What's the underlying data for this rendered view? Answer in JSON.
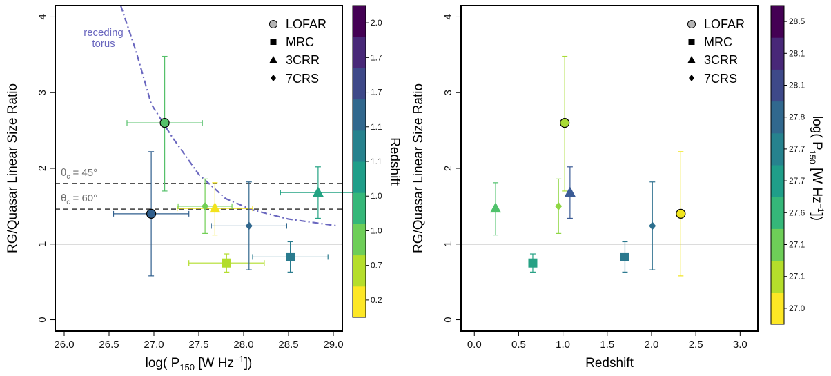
{
  "chart_data": [
    {
      "type": "scatter",
      "xlabel_main": "log( P",
      "xlabel_sub": "150",
      "xlabel_units": " [W Hz",
      "xlabel_sup": "−1",
      "xlabel_end": "])",
      "ylabel": "RG/Quasar Linear Size Ratio",
      "xlim": [
        25.9,
        29.1
      ],
      "ylim": [
        -0.15,
        4.15
      ],
      "xticks": [
        "26.0",
        "26.5",
        "27.0",
        "27.5",
        "28.0",
        "28.5",
        "29.0"
      ],
      "yticks": [
        "0",
        "1",
        "2",
        "3",
        "4"
      ],
      "legend": [
        "LOFAR",
        "MRC",
        "3CRR",
        "7CRS"
      ],
      "colorbar_label": "Redshift",
      "colorbar_ticks": [
        "0.2",
        "0.7",
        "1.0",
        "1.0",
        "1.1",
        "1.1",
        "1.7",
        "1.7",
        "2.0"
      ],
      "hlines": [
        {
          "y": 1.0,
          "style": "solid-gray"
        },
        {
          "y": 1.8,
          "style": "dashed",
          "label_main": "θ",
          "label_sub": "c",
          "label_rest": " = 45°"
        },
        {
          "y": 1.46,
          "style": "dashed",
          "label_main": "θ",
          "label_sub": "c",
          "label_rest": " = 60°"
        }
      ],
      "curve": {
        "label_line1": "receding",
        "label_line2": "torus",
        "color": "#6a67bf",
        "x": [
          26.63,
          26.8,
          26.97,
          27.2,
          27.5,
          27.8,
          28.1,
          28.5,
          29.05
        ],
        "y": [
          4.15,
          3.55,
          2.85,
          2.42,
          1.92,
          1.6,
          1.45,
          1.33,
          1.24
        ]
      },
      "points": [
        {
          "survey": "LOFAR",
          "x": 27.12,
          "y": 2.6,
          "xerr": 0.42,
          "yerr_lo": 0.9,
          "yerr_hi": 0.88,
          "color": "#55c06a"
        },
        {
          "survey": "LOFAR",
          "x": 26.97,
          "y": 1.4,
          "xerr": 0.42,
          "yerr_lo": 0.82,
          "yerr_hi": 0.82,
          "color": "#2f5e8d"
        },
        {
          "survey": "MRC",
          "x": 27.81,
          "y": 0.75,
          "xerr": 0.42,
          "yerr_lo": 0.12,
          "yerr_hi": 0.12,
          "color": "#b2dd2c"
        },
        {
          "survey": "MRC",
          "x": 28.52,
          "y": 0.83,
          "xerr": 0.42,
          "yerr_lo": 0.2,
          "yerr_hi": 0.2,
          "color": "#2a7b8e"
        },
        {
          "survey": "3CRR",
          "x": 27.68,
          "y": 1.47,
          "xerr": 0.42,
          "yerr_lo": 0.35,
          "yerr_hi": 0.34,
          "color": "#f2e21b"
        },
        {
          "survey": "3CRR",
          "x": 28.83,
          "y": 1.68,
          "xerr": 0.42,
          "yerr_lo": 0.34,
          "yerr_hi": 0.34,
          "color": "#23a383"
        },
        {
          "survey": "7CRS",
          "x": 27.57,
          "y": 1.5,
          "xerr": 0.3,
          "yerr_lo": 0.36,
          "yerr_hi": 0.36,
          "color": "#72cf55"
        },
        {
          "survey": "7CRS",
          "x": 28.06,
          "y": 1.24,
          "xerr": 0.42,
          "yerr_lo": 0.58,
          "yerr_hi": 0.58,
          "color": "#31688e"
        }
      ]
    },
    {
      "type": "scatter",
      "xlabel": "Redshift",
      "ylabel": "RG/Quasar Linear Size Ratio",
      "xlim": [
        -0.15,
        3.2
      ],
      "ylim": [
        -0.15,
        4.15
      ],
      "xticks": [
        "0.0",
        "0.5",
        "1.0",
        "1.5",
        "2.0",
        "2.5",
        "3.0"
      ],
      "yticks": [
        "0",
        "1",
        "2",
        "3",
        "4"
      ],
      "legend": [
        "LOFAR",
        "MRC",
        "3CRR",
        "7CRS"
      ],
      "colorbar_label_main": "log( P",
      "colorbar_label_sub": "150",
      "colorbar_label_units": " [W Hz",
      "colorbar_label_sup": "−1",
      "colorbar_label_end": "])",
      "colorbar_ticks": [
        "27.0",
        "27.1",
        "27.1",
        "27.6",
        "27.7",
        "27.7",
        "27.8",
        "28.1",
        "28.1",
        "28.5"
      ],
      "hlines": [
        {
          "y": 1.0,
          "style": "solid-gray"
        }
      ],
      "points": [
        {
          "survey": "3CRR",
          "x": 0.24,
          "y": 1.47,
          "yerr_lo": 0.35,
          "yerr_hi": 0.34,
          "color": "#4fc16b"
        },
        {
          "survey": "MRC",
          "x": 0.66,
          "y": 0.75,
          "yerr_lo": 0.12,
          "yerr_hi": 0.12,
          "color": "#26a184"
        },
        {
          "survey": "7CRS",
          "x": 0.95,
          "y": 1.5,
          "yerr_lo": 0.36,
          "yerr_hi": 0.36,
          "color": "#8fd744"
        },
        {
          "survey": "LOFAR",
          "x": 1.02,
          "y": 2.6,
          "yerr_lo": 0.9,
          "yerr_hi": 0.88,
          "color": "#a8db34"
        },
        {
          "survey": "3CRR",
          "x": 1.08,
          "y": 1.68,
          "yerr_lo": 0.34,
          "yerr_hi": 0.34,
          "color": "#3b5b95"
        },
        {
          "survey": "MRC",
          "x": 1.7,
          "y": 0.83,
          "yerr_lo": 0.2,
          "yerr_hi": 0.2,
          "color": "#2a788e"
        },
        {
          "survey": "7CRS",
          "x": 2.01,
          "y": 1.24,
          "yerr_lo": 0.58,
          "yerr_hi": 0.58,
          "color": "#2c6f8e"
        },
        {
          "survey": "LOFAR",
          "x": 2.33,
          "y": 1.4,
          "yerr_lo": 0.82,
          "yerr_hi": 0.82,
          "color": "#f1e51d"
        }
      ]
    }
  ],
  "colorbar_colors": [
    "#fde725",
    "#b5de2b",
    "#6ece58",
    "#35b779",
    "#1f9e89",
    "#26828e",
    "#31688e",
    "#3e4989",
    "#482878",
    "#440154"
  ],
  "colorbar_colors_right": [
    "#fde725",
    "#b5de2b",
    "#6ece58",
    "#35b779",
    "#1f9e89",
    "#26828e",
    "#31688e",
    "#3e4989",
    "#482878",
    "#440154"
  ]
}
